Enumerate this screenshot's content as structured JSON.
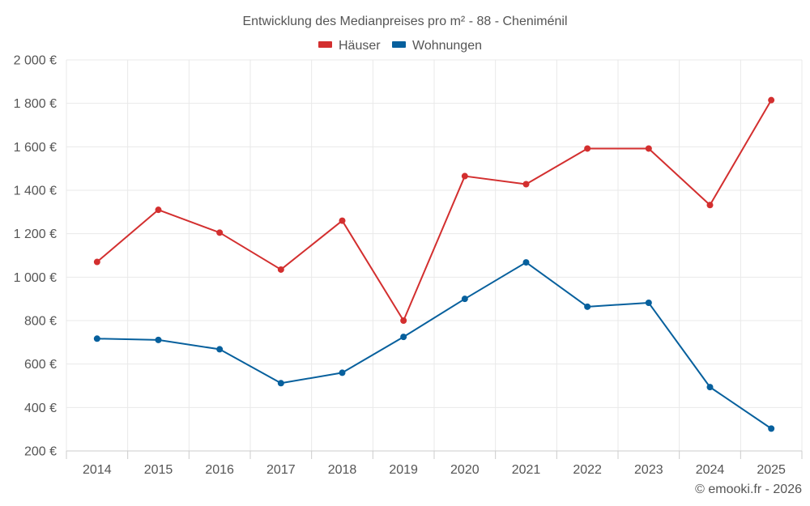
{
  "chart_data": {
    "type": "line",
    "title": "Entwicklung des Medianpreises pro m² - 88 - Cheniménil",
    "categories": [
      "2014",
      "2015",
      "2016",
      "2017",
      "2018",
      "2019",
      "2020",
      "2021",
      "2022",
      "2023",
      "2024",
      "2025"
    ],
    "series": [
      {
        "name": "Häuser",
        "color": "#d32f2f",
        "values": [
          1070,
          1310,
          1205,
          1035,
          1260,
          800,
          1465,
          1428,
          1592,
          1592,
          1332,
          1815
        ]
      },
      {
        "name": "Wohnungen",
        "color": "#07609d",
        "values": [
          717,
          711,
          668,
          512,
          560,
          725,
          900,
          1068,
          864,
          882,
          494,
          303
        ]
      }
    ],
    "ylim": [
      200,
      2000
    ],
    "yticks": [
      200,
      400,
      600,
      800,
      1000,
      1200,
      1400,
      1600,
      1800,
      2000
    ],
    "ytick_labels": [
      "200 €",
      "400 €",
      "600 €",
      "800 €",
      "1 000 €",
      "1 200 €",
      "1 400 €",
      "1 600 €",
      "1 800 €",
      "2 000 €"
    ],
    "grid": true,
    "legend_position": "top-center",
    "xlabel": "",
    "ylabel": ""
  },
  "credit": "© emooki.fr - 2026"
}
